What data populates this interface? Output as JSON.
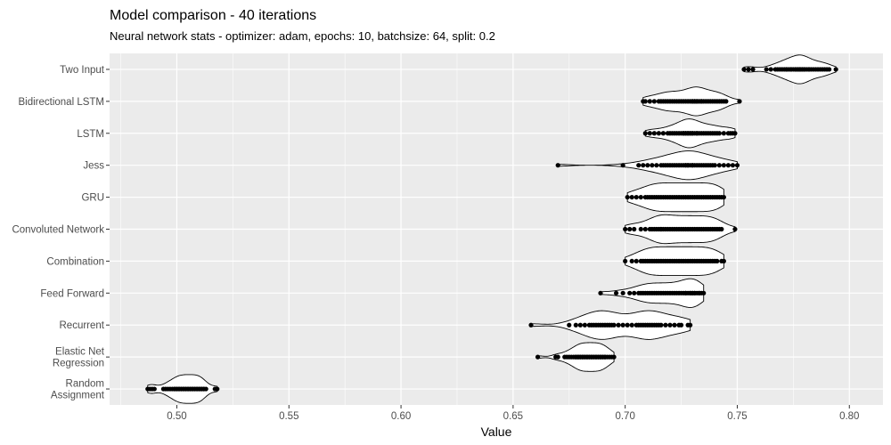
{
  "chart_data": {
    "type": "violin",
    "title": "Model comparison - 40 iterations",
    "subtitle": "Neural network stats - optimizer: adam, epochs: 10, batchsize: 64, split: 0.2",
    "xlabel": "Value",
    "ylabel": "",
    "xlim": [
      0.47,
      0.815
    ],
    "x_ticks": [
      0.5,
      0.55,
      0.6,
      0.65,
      0.7,
      0.75,
      0.8
    ],
    "x_tick_labels": [
      "0.50",
      "0.55",
      "0.60",
      "0.65",
      "0.70",
      "0.75",
      "0.80"
    ],
    "grid": true,
    "legend": "none",
    "colors": {
      "panel_background": "#ebebeb",
      "grid_major": "#ffffff",
      "violin_fill": "#ffffff",
      "violin_outline": "#000000",
      "points": "#000000"
    },
    "categories": [
      "Two Input",
      "Bidirectional LSTM",
      "LSTM",
      "Jess",
      "GRU",
      "Convoluted Network",
      "Combination",
      "Feed Forward",
      "Recurrent",
      "Elastic Net\nRegression",
      "Random\nAssignment"
    ],
    "series": [
      {
        "category": "Two Input",
        "values": [
          0.753,
          0.755,
          0.757,
          0.763,
          0.765,
          0.767,
          0.768,
          0.769,
          0.77,
          0.771,
          0.772,
          0.772,
          0.773,
          0.774,
          0.774,
          0.775,
          0.776,
          0.776,
          0.777,
          0.777,
          0.778,
          0.778,
          0.779,
          0.779,
          0.78,
          0.78,
          0.781,
          0.782,
          0.782,
          0.783,
          0.784,
          0.785,
          0.786,
          0.787,
          0.788,
          0.789,
          0.79,
          0.791,
          0.794,
          0.778
        ]
      },
      {
        "category": "Bidirectional LSTM",
        "values": [
          0.708,
          0.709,
          0.711,
          0.713,
          0.715,
          0.716,
          0.717,
          0.718,
          0.719,
          0.72,
          0.721,
          0.722,
          0.723,
          0.724,
          0.725,
          0.726,
          0.727,
          0.728,
          0.729,
          0.73,
          0.73,
          0.731,
          0.731,
          0.732,
          0.732,
          0.733,
          0.734,
          0.734,
          0.735,
          0.736,
          0.737,
          0.738,
          0.739,
          0.74,
          0.741,
          0.742,
          0.743,
          0.744,
          0.745,
          0.751
        ]
      },
      {
        "category": "LSTM",
        "values": [
          0.709,
          0.711,
          0.713,
          0.715,
          0.717,
          0.719,
          0.72,
          0.721,
          0.722,
          0.723,
          0.724,
          0.725,
          0.726,
          0.726,
          0.727,
          0.727,
          0.728,
          0.728,
          0.729,
          0.729,
          0.73,
          0.73,
          0.731,
          0.732,
          0.732,
          0.733,
          0.734,
          0.735,
          0.736,
          0.737,
          0.738,
          0.739,
          0.74,
          0.741,
          0.742,
          0.744,
          0.746,
          0.747,
          0.748,
          0.749
        ]
      },
      {
        "category": "Jess",
        "values": [
          0.67,
          0.699,
          0.706,
          0.708,
          0.71,
          0.712,
          0.714,
          0.716,
          0.717,
          0.718,
          0.719,
          0.72,
          0.721,
          0.722,
          0.723,
          0.724,
          0.725,
          0.726,
          0.727,
          0.727,
          0.728,
          0.728,
          0.729,
          0.73,
          0.73,
          0.731,
          0.732,
          0.733,
          0.734,
          0.735,
          0.736,
          0.737,
          0.738,
          0.739,
          0.74,
          0.742,
          0.744,
          0.746,
          0.748,
          0.75
        ]
      },
      {
        "category": "GRU",
        "values": [
          0.701,
          0.703,
          0.705,
          0.707,
          0.709,
          0.71,
          0.711,
          0.712,
          0.713,
          0.714,
          0.715,
          0.716,
          0.717,
          0.718,
          0.719,
          0.72,
          0.721,
          0.722,
          0.723,
          0.724,
          0.725,
          0.726,
          0.727,
          0.728,
          0.729,
          0.73,
          0.731,
          0.732,
          0.733,
          0.734,
          0.735,
          0.736,
          0.737,
          0.738,
          0.739,
          0.74,
          0.741,
          0.742,
          0.743,
          0.744
        ]
      },
      {
        "category": "Convoluted Network",
        "values": [
          0.7,
          0.702,
          0.704,
          0.707,
          0.709,
          0.711,
          0.712,
          0.713,
          0.714,
          0.715,
          0.716,
          0.716,
          0.717,
          0.718,
          0.719,
          0.72,
          0.721,
          0.722,
          0.723,
          0.724,
          0.725,
          0.726,
          0.727,
          0.728,
          0.729,
          0.73,
          0.731,
          0.732,
          0.733,
          0.734,
          0.735,
          0.736,
          0.737,
          0.738,
          0.739,
          0.74,
          0.741,
          0.742,
          0.743,
          0.749
        ]
      },
      {
        "category": "Combination",
        "values": [
          0.7,
          0.703,
          0.705,
          0.707,
          0.708,
          0.709,
          0.71,
          0.711,
          0.712,
          0.713,
          0.714,
          0.715,
          0.716,
          0.717,
          0.718,
          0.719,
          0.72,
          0.721,
          0.722,
          0.723,
          0.724,
          0.725,
          0.726,
          0.727,
          0.728,
          0.729,
          0.73,
          0.731,
          0.732,
          0.733,
          0.734,
          0.735,
          0.736,
          0.737,
          0.738,
          0.739,
          0.74,
          0.741,
          0.743,
          0.744
        ]
      },
      {
        "category": "Feed Forward",
        "values": [
          0.689,
          0.696,
          0.699,
          0.702,
          0.704,
          0.706,
          0.707,
          0.708,
          0.709,
          0.71,
          0.711,
          0.712,
          0.713,
          0.714,
          0.715,
          0.716,
          0.717,
          0.718,
          0.719,
          0.72,
          0.721,
          0.722,
          0.723,
          0.724,
          0.725,
          0.726,
          0.727,
          0.727,
          0.728,
          0.729,
          0.729,
          0.73,
          0.73,
          0.731,
          0.731,
          0.732,
          0.733,
          0.733,
          0.734,
          0.735
        ]
      },
      {
        "category": "Recurrent",
        "values": [
          0.658,
          0.675,
          0.678,
          0.68,
          0.682,
          0.684,
          0.685,
          0.686,
          0.687,
          0.688,
          0.689,
          0.69,
          0.691,
          0.692,
          0.693,
          0.694,
          0.695,
          0.697,
          0.699,
          0.701,
          0.703,
          0.705,
          0.706,
          0.707,
          0.708,
          0.709,
          0.71,
          0.711,
          0.712,
          0.713,
          0.714,
          0.715,
          0.716,
          0.718,
          0.72,
          0.722,
          0.724,
          0.725,
          0.728,
          0.729
        ]
      },
      {
        "category": "Elastic Net\nRegression",
        "values": [
          0.661,
          0.669,
          0.67,
          0.673,
          0.674,
          0.675,
          0.676,
          0.677,
          0.678,
          0.678,
          0.679,
          0.679,
          0.68,
          0.68,
          0.681,
          0.681,
          0.682,
          0.682,
          0.683,
          0.683,
          0.684,
          0.684,
          0.685,
          0.685,
          0.686,
          0.686,
          0.687,
          0.687,
          0.688,
          0.688,
          0.689,
          0.689,
          0.69,
          0.69,
          0.691,
          0.691,
          0.692,
          0.693,
          0.694,
          0.695
        ]
      },
      {
        "category": "Random\nAssignment",
        "values": [
          0.487,
          0.488,
          0.489,
          0.49,
          0.494,
          0.495,
          0.496,
          0.497,
          0.498,
          0.499,
          0.499,
          0.5,
          0.5,
          0.501,
          0.501,
          0.502,
          0.502,
          0.503,
          0.503,
          0.504,
          0.504,
          0.505,
          0.505,
          0.506,
          0.506,
          0.507,
          0.507,
          0.508,
          0.508,
          0.509,
          0.509,
          0.51,
          0.51,
          0.511,
          0.511,
          0.512,
          0.512,
          0.513,
          0.517,
          0.518
        ]
      }
    ]
  }
}
